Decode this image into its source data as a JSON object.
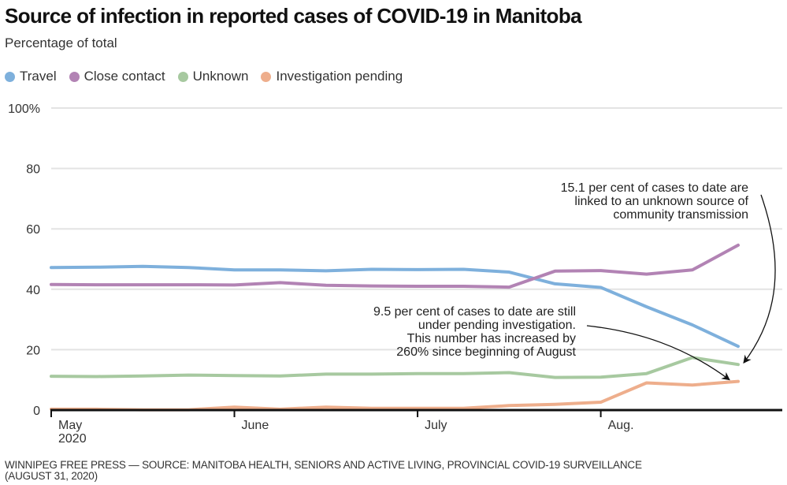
{
  "chart_data": {
    "type": "line",
    "title": "Source of infection in reported cases of COVID-19 in Manitoba",
    "subtitle": "Percentage of total",
    "xlabel": "",
    "ylabel": "Percentage of total",
    "ylim": [
      0,
      100
    ],
    "yticks": [
      0,
      20,
      40,
      60,
      80,
      100
    ],
    "ytick_labels": [
      "0",
      "20",
      "40",
      "60",
      "80",
      "100%"
    ],
    "grid": true,
    "legend_position": "top-left",
    "x_points": 16,
    "x_interval": "weekly",
    "xticks": [
      {
        "index": 0,
        "label": "May",
        "sublabel": "2020"
      },
      {
        "index": 4,
        "label": "June",
        "sublabel": ""
      },
      {
        "index": 8,
        "label": "July",
        "sublabel": ""
      },
      {
        "index": 12,
        "label": "Aug.",
        "sublabel": ""
      }
    ],
    "series": [
      {
        "name": "Travel",
        "color": "#7eb0dc",
        "values": [
          47.2,
          47.3,
          47.6,
          47.2,
          46.4,
          46.4,
          46.1,
          46.6,
          46.5,
          46.6,
          45.7,
          41.8,
          40.6,
          34.2,
          28.2,
          21.1
        ]
      },
      {
        "name": "Close contact",
        "color": "#b283b4",
        "values": [
          41.6,
          41.5,
          41.5,
          41.5,
          41.4,
          42.2,
          41.3,
          41.1,
          41.0,
          41.0,
          40.7,
          46.0,
          46.2,
          45.0,
          46.4,
          54.6
        ]
      },
      {
        "name": "Unknown",
        "color": "#a7c9a0",
        "values": [
          11.2,
          11.1,
          11.3,
          11.6,
          11.4,
          11.3,
          11.9,
          11.9,
          12.1,
          12.1,
          12.4,
          10.8,
          10.9,
          12.1,
          17.4,
          15.1
        ]
      },
      {
        "name": "Investigation pending",
        "color": "#eeae8c",
        "values": [
          0.3,
          0.3,
          0.1,
          0.1,
          1.0,
          0.3,
          1.0,
          0.6,
          0.6,
          0.6,
          1.5,
          1.9,
          2.6,
          9.0,
          8.3,
          9.5
        ]
      }
    ],
    "annotations": [
      {
        "target_series": "Unknown",
        "target_index": 15,
        "lines": [
          "15.1 per cent of cases to date are",
          "linked to an unknown source of",
          "community transmission"
        ]
      },
      {
        "target_series": "Investigation pending",
        "target_index": 15,
        "lines": [
          "9.5 per cent of cases to date are still",
          "under pending investigation.",
          "This number has increased by",
          "260% since beginning of August"
        ]
      }
    ]
  },
  "footer": {
    "line1": "WINNIPEG FREE PRESS — SOURCE: MANITOBA HEALTH, SENIORS AND ACTIVE LIVING, PROVINCIAL COVID-19 SURVEILLANCE",
    "line2": "(AUGUST 31, 2020)"
  }
}
